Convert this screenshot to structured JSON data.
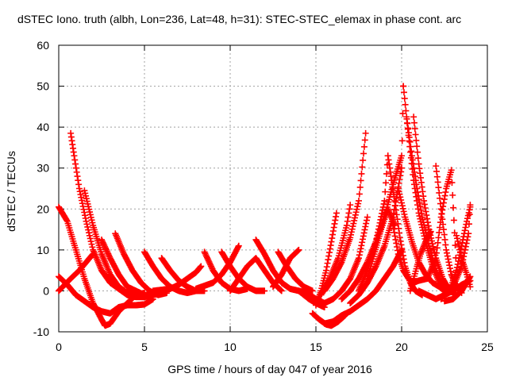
{
  "chart_data": {
    "type": "scatter",
    "title": "dSTEC Iono. truth (albh, Lon=236, Lat=48, h=31): STEC-STEC_elemax in phase cont. arc",
    "xlabel": "GPS time / hours of day 047 of year 2016",
    "ylabel": "dSTEC  / TECUs",
    "xlim": [
      0,
      25
    ],
    "ylim": [
      -10,
      60
    ],
    "xticks": [
      0,
      5,
      10,
      15,
      20,
      25
    ],
    "yticks": [
      -10,
      0,
      10,
      20,
      30,
      40,
      50,
      60
    ],
    "grid": true,
    "marker": "plus",
    "color": "#ff0000",
    "series": [
      {
        "x": [
          0.0,
          0.5,
          1.0,
          1.5,
          2.0,
          2.5,
          2.7,
          3.0,
          3.5,
          4.0,
          4.5,
          5.0
        ],
        "y": [
          20.5,
          17,
          10,
          3,
          -3,
          -7,
          -8.5,
          -8,
          -5,
          -3,
          -1,
          -0.5
        ]
      },
      {
        "x": [
          0.0,
          0.7,
          1.2,
          1.6,
          2.0
        ],
        "y": [
          0,
          3,
          5,
          7,
          9
        ]
      },
      {
        "x": [
          0.0,
          0.5,
          1.0,
          1.5,
          2.0,
          2.5,
          3.0,
          3.5,
          4.0,
          4.5,
          5.0,
          5.5
        ],
        "y": [
          3.5,
          1.5,
          -1,
          -2.5,
          -4,
          -5,
          -5.5,
          -4,
          -3.5,
          -3.5,
          -3.3,
          -2
        ]
      },
      {
        "x": [
          0.7,
          0.9,
          1.2,
          1.6,
          2.0,
          2.5,
          3.0,
          3.5,
          4.0,
          4.5,
          5.0
        ],
        "y": [
          38.5,
          33,
          25,
          17,
          10,
          5,
          2,
          0.5,
          -1,
          -1.5,
          -1.5
        ]
      },
      {
        "x": [
          1.5,
          2.0,
          2.5,
          3.0,
          3.5,
          4.0,
          4.5,
          5.0,
          5.5,
          6.0
        ],
        "y": [
          24.5,
          16,
          9,
          4,
          1,
          -0.5,
          -1,
          -1.5,
          -1,
          -0.5
        ]
      },
      {
        "x": [
          2.5,
          3.0,
          3.5,
          4.0,
          4.5,
          5.0,
          5.5,
          6.0
        ],
        "y": [
          12.5,
          8,
          4,
          1,
          0,
          -1,
          -1,
          -0.5
        ]
      },
      {
        "x": [
          3.3,
          3.8,
          4.3,
          4.8,
          5.3,
          5.8,
          6.3
        ],
        "y": [
          14,
          9,
          5,
          2,
          0,
          -1,
          -0.5
        ]
      },
      {
        "x": [
          5.0,
          5.5,
          6.0,
          6.5,
          7.0,
          7.5,
          8.0
        ],
        "y": [
          9.5,
          6,
          3,
          1,
          0,
          -0.5,
          0
        ]
      },
      {
        "x": [
          6.0,
          6.5,
          7.0,
          7.5,
          8.0,
          8.5
        ],
        "y": [
          8,
          5,
          2.5,
          1,
          0,
          0
        ]
      },
      {
        "x": [
          5.5,
          6.5,
          7.0,
          7.5,
          8.0,
          8.3
        ],
        "y": [
          0,
          0.5,
          1.5,
          3,
          4.5,
          6
        ]
      },
      {
        "x": [
          8.5,
          9.0,
          9.5,
          10.0,
          10.5,
          11.0
        ],
        "y": [
          9.5,
          5,
          2,
          0.5,
          0,
          0.5
        ]
      },
      {
        "x": [
          8.0,
          9.0,
          9.5,
          10.0,
          10.5
        ],
        "y": [
          0.5,
          2,
          4,
          7,
          11
        ]
      },
      {
        "x": [
          9.5,
          10.0,
          10.5,
          11.0,
          11.5,
          12.0
        ],
        "y": [
          9.5,
          6,
          3,
          1,
          0,
          0
        ]
      },
      {
        "x": [
          10.0,
          10.5,
          11.0,
          11.5,
          12.0,
          12.5,
          13.0
        ],
        "y": [
          0,
          3,
          6,
          8,
          5,
          2,
          0
        ]
      },
      {
        "x": [
          11.5,
          12.0,
          12.5,
          13.0,
          13.5,
          14.0,
          14.5
        ],
        "y": [
          12.5,
          9,
          5,
          2,
          0.5,
          0,
          -0.5
        ]
      },
      {
        "x": [
          12.5,
          13.0,
          13.5,
          14.0
        ],
        "y": [
          1,
          4,
          8,
          10
        ]
      },
      {
        "x": [
          12.8,
          13.3,
          13.8,
          14.3,
          14.8
        ],
        "y": [
          9.5,
          6,
          3,
          1,
          0
        ]
      },
      {
        "x": [
          14.0,
          14.3,
          14.6,
          15.0,
          15.5
        ],
        "y": [
          0,
          -1,
          -2,
          -3,
          -4
        ]
      },
      {
        "x": [
          14.5,
          15.0,
          15.5,
          16.0,
          16.5,
          17.0,
          17.5,
          18.0
        ],
        "y": [
          -0.5,
          -2,
          -3,
          -2,
          0,
          3,
          8,
          18
        ]
      },
      {
        "x": [
          14.8,
          15.2,
          15.6,
          15.9,
          16.3,
          16.7
        ],
        "y": [
          -5.5,
          -7,
          -8.2,
          -8.5,
          -7.5,
          -6
        ]
      },
      {
        "x": [
          15.5,
          16.0,
          16.5,
          17.0,
          17.5,
          18.0,
          18.5,
          19.0,
          19.5,
          20.0
        ],
        "y": [
          -8,
          -7.5,
          -6,
          -5,
          -3.5,
          -2,
          0,
          3,
          6,
          10
        ]
      },
      {
        "x": [
          15.0,
          15.3,
          15.6,
          15.9,
          16.2
        ],
        "y": [
          -3.5,
          0,
          5,
          12,
          19
        ]
      },
      {
        "x": [
          15.3,
          15.8,
          16.3,
          16.8,
          17.0
        ],
        "y": [
          -1,
          3,
          8,
          16,
          21
        ]
      },
      {
        "x": [
          15.5,
          16.0,
          16.5,
          17.0,
          17.5,
          17.9
        ],
        "y": [
          0,
          3,
          7,
          13,
          22,
          38.5
        ]
      },
      {
        "x": [
          16.5,
          17.0,
          17.5,
          18.0,
          18.5,
          19.0,
          19.5,
          20.0
        ],
        "y": [
          -2,
          0,
          3,
          7,
          12,
          18,
          26,
          33
        ]
      },
      {
        "x": [
          17.0,
          17.5,
          18.0,
          18.5,
          19.0,
          19.5,
          20.0,
          20.1
        ],
        "y": [
          -3,
          -1,
          2,
          6,
          11,
          18,
          30,
          50
        ]
      },
      {
        "x": [
          17.5,
          18.0,
          18.5,
          19.0,
          19.2
        ],
        "y": [
          0,
          5,
          12,
          22,
          33
        ]
      },
      {
        "x": [
          18.0,
          18.4,
          18.8,
          19.2,
          19.6
        ],
        "y": [
          3,
          9,
          15,
          20,
          16
        ]
      },
      {
        "x": [
          19.2,
          19.6,
          19.9,
          20.2,
          20.5,
          20.8,
          21.2
        ],
        "y": [
          33,
          22,
          13,
          6,
          2,
          0,
          -1
        ]
      },
      {
        "x": [
          19.5,
          19.8,
          20.1,
          20.4,
          20.7,
          21.0,
          21.5
        ],
        "y": [
          16,
          9,
          5,
          3,
          2,
          2.5,
          3
        ]
      },
      {
        "x": [
          19.8,
          20.2,
          20.6,
          21.0,
          21.4,
          21.8,
          22.2,
          22.5
        ],
        "y": [
          25,
          18,
          12,
          7,
          4,
          2,
          1,
          0
        ]
      },
      {
        "x": [
          20.1,
          20.4,
          20.7,
          21.0,
          21.4,
          21.8,
          22.2,
          22.6
        ],
        "y": [
          50,
          38,
          27,
          19,
          12,
          6,
          2,
          -0.5
        ]
      },
      {
        "x": [
          20.3,
          20.6,
          20.9,
          21.2,
          21.6,
          22.0,
          22.4
        ],
        "y": [
          42,
          33,
          25,
          18,
          11,
          5,
          1
        ]
      },
      {
        "x": [
          20.7,
          21.0,
          21.3,
          21.6,
          22.0,
          22.4,
          22.8,
          23.2
        ],
        "y": [
          42.5,
          31,
          22,
          15,
          8,
          3,
          0,
          -1
        ]
      },
      {
        "x": [
          20.5,
          20.7,
          20.9,
          21.1,
          21.4,
          21.7
        ],
        "y": [
          0,
          3,
          6,
          9,
          12,
          14.5
        ]
      },
      {
        "x": [
          21.0,
          21.5,
          22.0,
          22.5,
          23.0,
          23.5,
          24.0
        ],
        "y": [
          0,
          -1,
          -2,
          -1,
          0,
          1.5,
          2.5
        ]
      },
      {
        "x": [
          21.5,
          22.0,
          22.3,
          22.6,
          22.9,
          23.2
        ],
        "y": [
          3,
          8,
          18,
          25,
          29.5,
          5
        ]
      },
      {
        "x": [
          22.0,
          22.3,
          22.6,
          22.9,
          23.2,
          23.5
        ],
        "y": [
          30.5,
          20,
          10,
          4,
          1,
          -0.5
        ]
      },
      {
        "x": [
          22.3,
          22.7,
          23.1,
          23.5,
          23.9,
          24.0
        ],
        "y": [
          -2,
          0,
          2,
          6,
          14,
          21
        ]
      },
      {
        "x": [
          22.8,
          23.2,
          23.5,
          23.8,
          24.0
        ],
        "y": [
          0,
          5,
          11,
          17,
          20.5
        ]
      },
      {
        "x": [
          23.2,
          23.5,
          23.8,
          24.0
        ],
        "y": [
          13.5,
          8,
          4,
          1
        ]
      },
      {
        "x": [
          22.5,
          23.0,
          23.5,
          24.0
        ],
        "y": [
          -2.5,
          -2,
          0,
          3.5
        ]
      }
    ]
  }
}
